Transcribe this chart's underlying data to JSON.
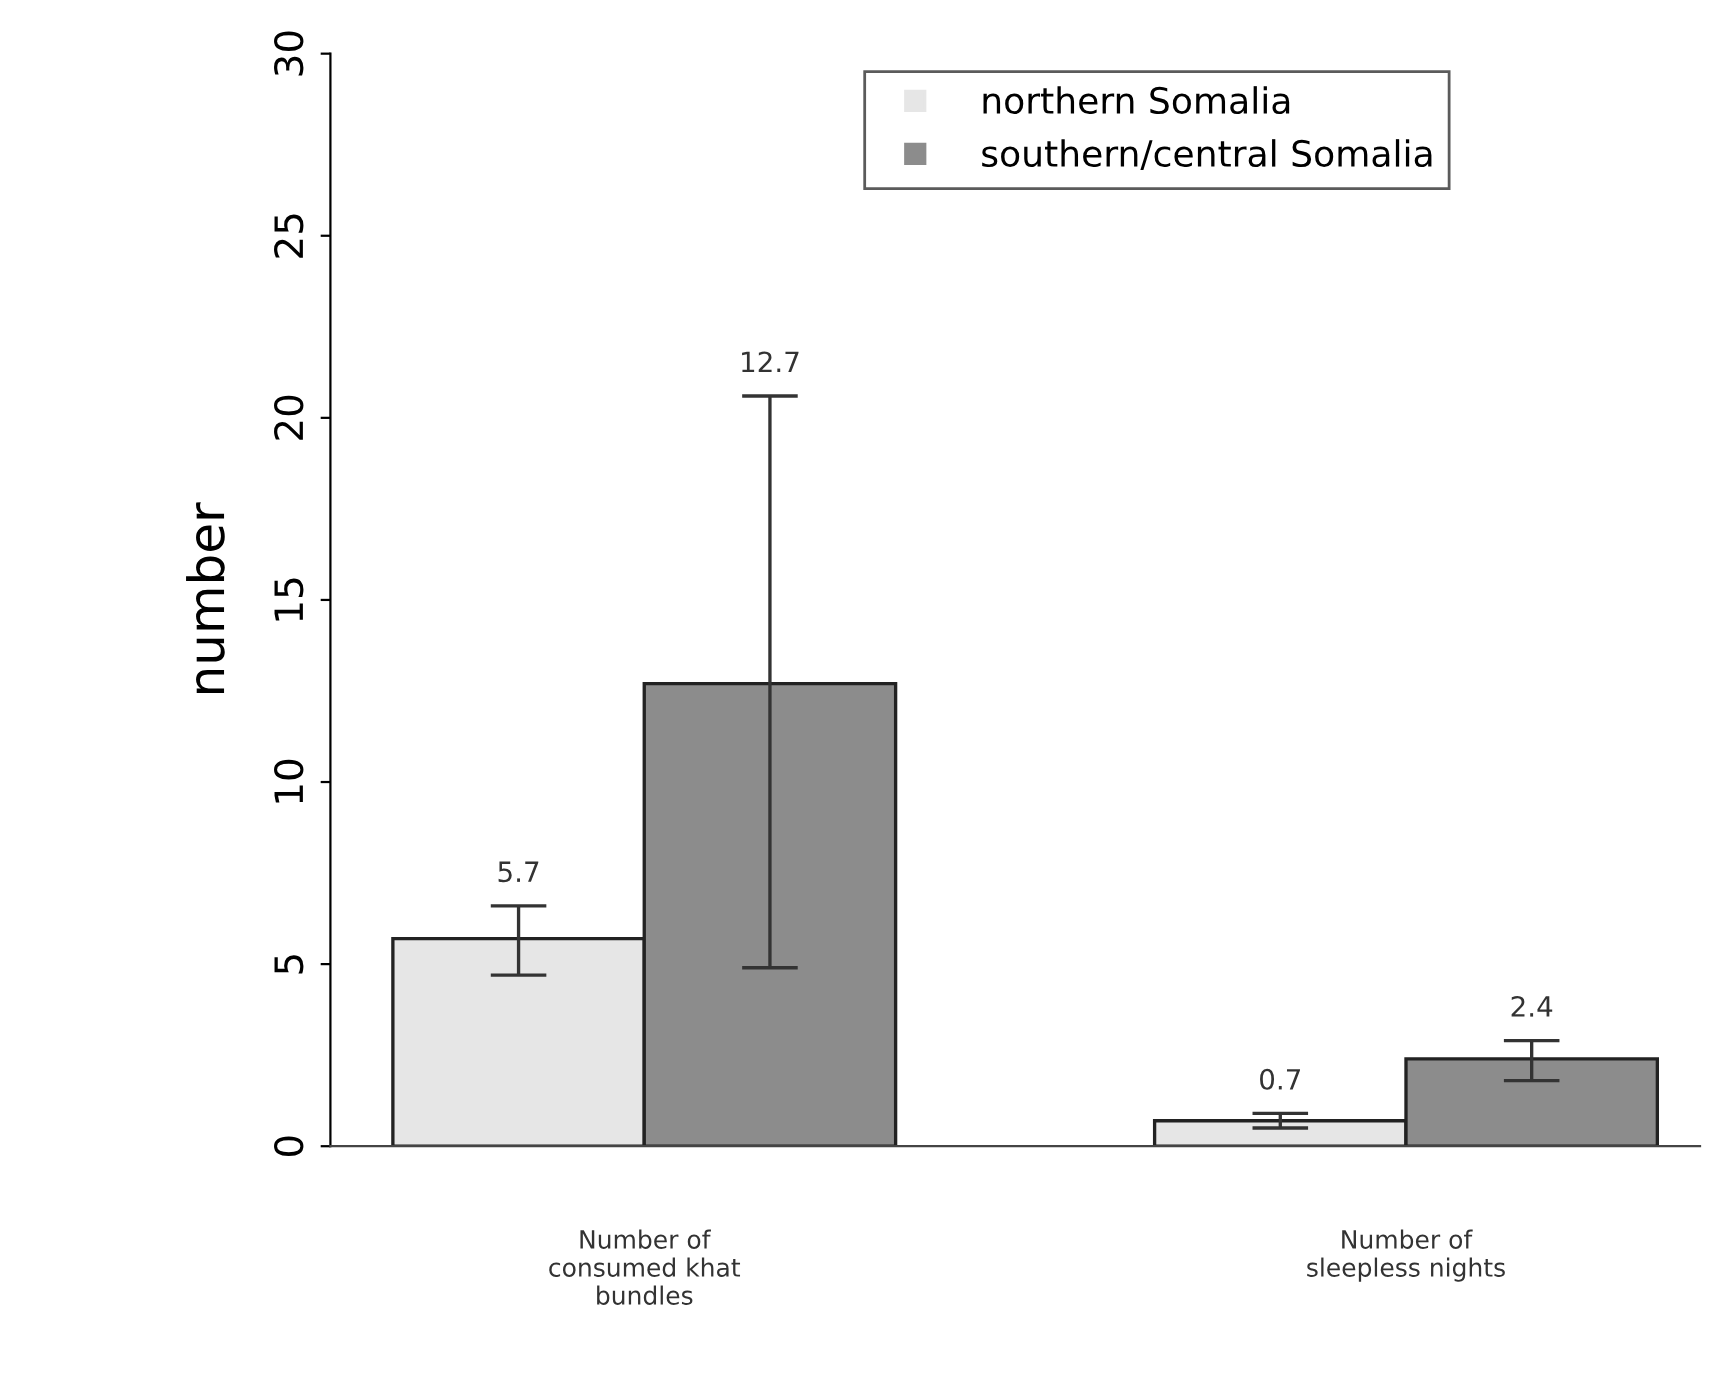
{
  "chart_data": {
    "type": "bar",
    "ylabel": "number",
    "categories": [
      "Number of\nconsumed khat\nbundles",
      "Number of\nsleepless nights"
    ],
    "series": [
      {
        "name": "northern Somalia",
        "color": "#e6e6e6",
        "values": [
          5.7,
          0.7
        ],
        "errors": [
          [
            4.7,
            6.6
          ],
          [
            0.5,
            0.9
          ]
        ],
        "value_labels": [
          "5.7",
          "0.7"
        ]
      },
      {
        "name": "southern/central Somalia",
        "color": "#8c8c8c",
        "values": [
          12.7,
          2.4
        ],
        "errors": [
          [
            4.9,
            20.6
          ],
          [
            1.8,
            2.9
          ]
        ],
        "value_labels": [
          null,
          "2.4"
        ]
      }
    ],
    "annotations": [
      "12.7"
    ],
    "ylim": [
      0,
      30
    ],
    "yticks": [
      0,
      5,
      10,
      15,
      20,
      25,
      30
    ],
    "grid": false,
    "legend": "top right"
  }
}
